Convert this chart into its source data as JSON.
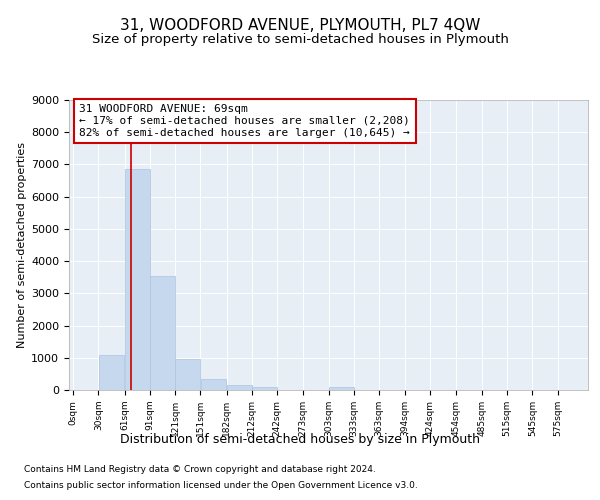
{
  "title1": "31, WOODFORD AVENUE, PLYMOUTH, PL7 4QW",
  "title2": "Size of property relative to semi-detached houses in Plymouth",
  "xlabel": "Distribution of semi-detached houses by size in Plymouth",
  "ylabel": "Number of semi-detached properties",
  "footnote1": "Contains HM Land Registry data © Crown copyright and database right 2024.",
  "footnote2": "Contains public sector information licensed under the Open Government Licence v3.0.",
  "annotation_title": "31 WOODFORD AVENUE: 69sqm",
  "annotation_line1": "← 17% of semi-detached houses are smaller (2,208)",
  "annotation_line2": "82% of semi-detached houses are larger (10,645) →",
  "property_size": 69,
  "bin_starts": [
    0,
    30,
    61,
    91,
    121,
    151,
    182,
    212,
    242,
    273,
    303,
    333,
    363,
    394,
    424,
    454,
    485,
    515,
    545,
    575,
    606
  ],
  "bar_values": [
    0,
    1100,
    6850,
    3550,
    970,
    340,
    150,
    100,
    0,
    0,
    100,
    0,
    0,
    0,
    0,
    0,
    0,
    0,
    0,
    0,
    0
  ],
  "bar_color": "#c5d8ee",
  "bar_edge_color": "#aac4e0",
  "vline_color": "#cc0000",
  "vline_x": 69,
  "annotation_box_color": "#cc0000",
  "ylim": [
    0,
    9000
  ],
  "yticks": [
    0,
    1000,
    2000,
    3000,
    4000,
    5000,
    6000,
    7000,
    8000,
    9000
  ],
  "bg_color": "#e8eef5",
  "grid_color": "#ffffff",
  "title1_fontsize": 11,
  "title2_fontsize": 9.5,
  "xlabel_fontsize": 9,
  "ylabel_fontsize": 8,
  "annotation_fontsize": 8,
  "footnote_fontsize": 6.5
}
